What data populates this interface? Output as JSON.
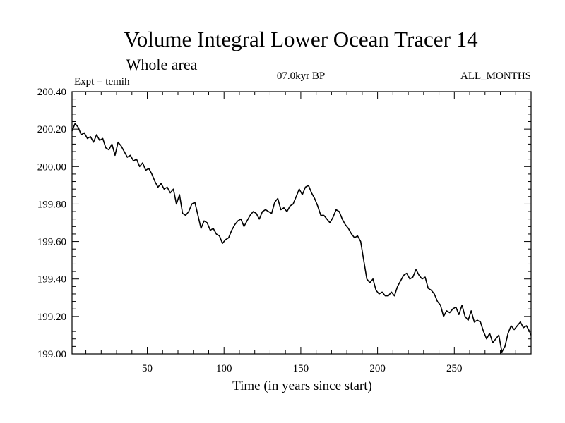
{
  "chart_data": {
    "type": "line",
    "title": "Volume Integral Lower Ocean Tracer 14",
    "subtitle": "Whole area",
    "expt_label": "Expt = temih",
    "period_label": "07.0kyr BP",
    "months_label": "ALL_MONTHS",
    "xlabel": "Time (in years since start)",
    "ylabel": "",
    "xlim": [
      1,
      300
    ],
    "ylim": [
      199.0,
      200.4
    ],
    "x_ticks": [
      50,
      100,
      150,
      200,
      250
    ],
    "x_tick_labels": [
      "50",
      "100",
      "150",
      "200",
      "250"
    ],
    "x_minor_step": 10,
    "y_ticks": [
      199.0,
      199.2,
      199.4,
      199.6,
      199.8,
      200.0,
      200.2,
      200.4
    ],
    "y_tick_labels": [
      "199.00",
      "199.20",
      "199.40",
      "199.60",
      "199.80",
      "200.00",
      "200.20",
      "200.40"
    ],
    "y_minor_step": 0.04,
    "grid": false,
    "series": [
      {
        "name": "Volume Integral Lower Ocean Tracer 14",
        "x": [
          1,
          3,
          5,
          7,
          9,
          11,
          13,
          15,
          17,
          19,
          21,
          23,
          25,
          27,
          29,
          31,
          33,
          35,
          37,
          39,
          41,
          43,
          45,
          47,
          49,
          51,
          53,
          55,
          57,
          59,
          61,
          63,
          65,
          67,
          69,
          71,
          73,
          75,
          77,
          79,
          81,
          83,
          85,
          87,
          89,
          91,
          93,
          95,
          97,
          99,
          101,
          103,
          105,
          107,
          109,
          111,
          113,
          115,
          117,
          119,
          121,
          123,
          125,
          127,
          129,
          131,
          133,
          135,
          137,
          139,
          141,
          143,
          145,
          147,
          149,
          151,
          153,
          155,
          157,
          159,
          161,
          163,
          165,
          167,
          169,
          171,
          173,
          175,
          177,
          179,
          181,
          183,
          185,
          187,
          189,
          191,
          193,
          195,
          197,
          199,
          201,
          203,
          205,
          207,
          209,
          211,
          213,
          215,
          217,
          219,
          221,
          223,
          225,
          227,
          229,
          231,
          233,
          235,
          237,
          239,
          241,
          243,
          245,
          247,
          249,
          251,
          253,
          255,
          257,
          259,
          261,
          263,
          265,
          267,
          269,
          271,
          273,
          275,
          277,
          279,
          281,
          283,
          285,
          287,
          289,
          291,
          293,
          295,
          297,
          299,
          300
        ],
        "values": [
          200.19,
          200.23,
          200.21,
          200.17,
          200.18,
          200.15,
          200.16,
          200.13,
          200.17,
          200.14,
          200.15,
          200.1,
          200.09,
          200.12,
          200.06,
          200.13,
          200.11,
          200.08,
          200.05,
          200.06,
          200.03,
          200.04,
          200.0,
          200.02,
          199.98,
          199.99,
          199.96,
          199.92,
          199.89,
          199.91,
          199.88,
          199.89,
          199.86,
          199.88,
          199.8,
          199.85,
          199.75,
          199.74,
          199.76,
          199.8,
          199.81,
          199.74,
          199.67,
          199.71,
          199.7,
          199.66,
          199.67,
          199.64,
          199.63,
          199.59,
          199.61,
          199.62,
          199.66,
          199.69,
          199.71,
          199.72,
          199.68,
          199.71,
          199.74,
          199.76,
          199.75,
          199.72,
          199.76,
          199.77,
          199.76,
          199.75,
          199.81,
          199.83,
          199.77,
          199.78,
          199.76,
          199.79,
          199.8,
          199.84,
          199.88,
          199.85,
          199.89,
          199.9,
          199.86,
          199.83,
          199.79,
          199.74,
          199.74,
          199.72,
          199.7,
          199.73,
          199.77,
          199.76,
          199.72,
          199.69,
          199.67,
          199.64,
          199.62,
          199.63,
          199.6,
          199.5,
          199.4,
          199.38,
          199.4,
          199.34,
          199.32,
          199.33,
          199.31,
          199.31,
          199.33,
          199.31,
          199.36,
          199.39,
          199.42,
          199.43,
          199.4,
          199.41,
          199.45,
          199.42,
          199.4,
          199.41,
          199.35,
          199.34,
          199.32,
          199.28,
          199.26,
          199.2,
          199.23,
          199.22,
          199.24,
          199.25,
          199.21,
          199.26,
          199.2,
          199.18,
          199.23,
          199.17,
          199.18,
          199.17,
          199.12,
          199.08,
          199.11,
          199.06,
          199.08,
          199.1,
          199.01,
          199.04,
          199.11,
          199.15,
          199.13,
          199.15,
          199.17,
          199.14,
          199.15,
          199.12,
          199.1
        ]
      }
    ]
  }
}
